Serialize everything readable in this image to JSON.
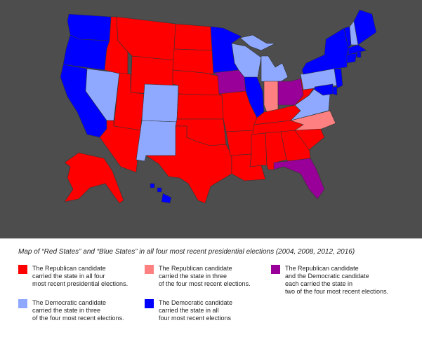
{
  "colors": {
    "background": "#4d4d4d",
    "red": "#ff0000",
    "light_red": "#ff8080",
    "purple": "#990099",
    "light_blue": "#8ea9ff",
    "blue": "#0000ff"
  },
  "caption": "Map of “Red States” and “Blue States” in all four most recent presidential elections (2004, 2008, 2012, 2016)",
  "legend": [
    {
      "key": "red",
      "text": "The Republican candidate\ncarried the state in all four\nmost recent presidential elections."
    },
    {
      "key": "light_red",
      "text": "The Republican candidate\ncarried the state in three\nof the four most recent elections."
    },
    {
      "key": "purple",
      "text": "The Republican candidate\nand the Democratic candidate\neach carried the state in\ntwo of the four most recent elections."
    },
    {
      "key": "light_blue",
      "text": "The Democratic candidate\ncarried the state in three\nof the four most recent elections."
    },
    {
      "key": "blue",
      "text": "The Democratic candidate\ncarried the state in all\nfour most recent elections"
    }
  ],
  "states": [
    {
      "name": "Washington",
      "category": "blue"
    },
    {
      "name": "Oregon",
      "category": "blue"
    },
    {
      "name": "California",
      "category": "blue"
    },
    {
      "name": "Nevada",
      "category": "light_blue"
    },
    {
      "name": "Idaho",
      "category": "red"
    },
    {
      "name": "Montana",
      "category": "red"
    },
    {
      "name": "Wyoming",
      "category": "red"
    },
    {
      "name": "Utah",
      "category": "red"
    },
    {
      "name": "Arizona",
      "category": "red"
    },
    {
      "name": "Colorado",
      "category": "light_blue"
    },
    {
      "name": "New Mexico",
      "category": "light_blue"
    },
    {
      "name": "North Dakota",
      "category": "red"
    },
    {
      "name": "South Dakota",
      "category": "red"
    },
    {
      "name": "Nebraska",
      "category": "red"
    },
    {
      "name": "Kansas",
      "category": "red"
    },
    {
      "name": "Oklahoma",
      "category": "red"
    },
    {
      "name": "Texas",
      "category": "red"
    },
    {
      "name": "Minnesota",
      "category": "blue"
    },
    {
      "name": "Iowa",
      "category": "purple"
    },
    {
      "name": "Missouri",
      "category": "red"
    },
    {
      "name": "Arkansas",
      "category": "red"
    },
    {
      "name": "Louisiana",
      "category": "red"
    },
    {
      "name": "Wisconsin",
      "category": "light_blue"
    },
    {
      "name": "Illinois",
      "category": "blue"
    },
    {
      "name": "Michigan",
      "category": "light_blue"
    },
    {
      "name": "Indiana",
      "category": "light_red"
    },
    {
      "name": "Ohio",
      "category": "purple"
    },
    {
      "name": "Kentucky",
      "category": "red"
    },
    {
      "name": "Tennessee",
      "category": "red"
    },
    {
      "name": "Mississippi",
      "category": "red"
    },
    {
      "name": "Alabama",
      "category": "red"
    },
    {
      "name": "Georgia",
      "category": "red"
    },
    {
      "name": "Florida",
      "category": "purple"
    },
    {
      "name": "South Carolina",
      "category": "red"
    },
    {
      "name": "North Carolina",
      "category": "light_red"
    },
    {
      "name": "Virginia",
      "category": "light_blue"
    },
    {
      "name": "West Virginia",
      "category": "red"
    },
    {
      "name": "Pennsylvania",
      "category": "light_blue"
    },
    {
      "name": "New York",
      "category": "blue"
    },
    {
      "name": "Vermont",
      "category": "blue"
    },
    {
      "name": "New Hampshire",
      "category": "light_blue"
    },
    {
      "name": "Maine",
      "category": "blue"
    },
    {
      "name": "Massachusetts",
      "category": "blue"
    },
    {
      "name": "Rhode Island",
      "category": "blue"
    },
    {
      "name": "Connecticut",
      "category": "blue"
    },
    {
      "name": "New Jersey",
      "category": "blue"
    },
    {
      "name": "Delaware",
      "category": "blue"
    },
    {
      "name": "Maryland",
      "category": "blue"
    },
    {
      "name": "Alaska",
      "category": "red"
    },
    {
      "name": "Hawaii",
      "category": "blue"
    }
  ]
}
